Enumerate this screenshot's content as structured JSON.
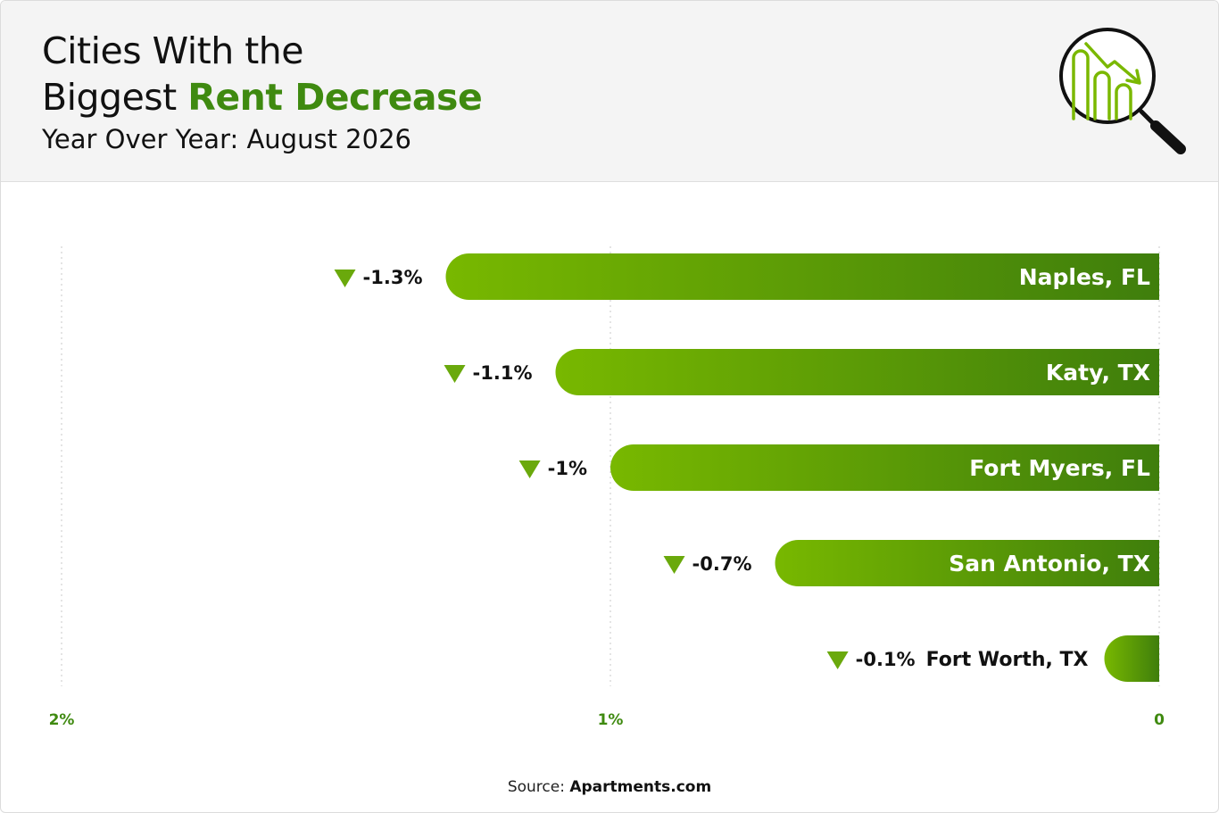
{
  "header": {
    "title_line1": "Cities With the",
    "title_line2_plain": "Biggest ",
    "title_line2_accent": "Rent Decrease",
    "subtitle": "Year Over Year: August 2026"
  },
  "logo": {
    "icon": "magnifier-chart-down-icon"
  },
  "colors": {
    "bar_start": "#78b800",
    "bar_end": "#3f7e0c",
    "accent": "#3f8a10",
    "marker": "#6aa90c"
  },
  "chart_data": {
    "type": "bar",
    "orientation": "horizontal",
    "direction": "right-to-left",
    "categories": [
      "Naples, FL",
      "Katy, TX",
      "Fort Myers, FL",
      "San Antonio, TX",
      "Fort Worth, TX"
    ],
    "values": [
      -1.3,
      -1.1,
      -1,
      -0.7,
      -0.1
    ],
    "value_labels": [
      "-1.3%",
      "-1.1%",
      "-1%",
      "-0.7%",
      "-0.1%"
    ],
    "axis_ticks": [
      {
        "value": 2,
        "label": "2%"
      },
      {
        "value": 1,
        "label": "1%"
      },
      {
        "value": 0,
        "label": "0"
      }
    ],
    "xlim": [
      0,
      2
    ],
    "grid": true
  },
  "source": {
    "prefix": "Source: ",
    "name": "Apartments.com"
  }
}
